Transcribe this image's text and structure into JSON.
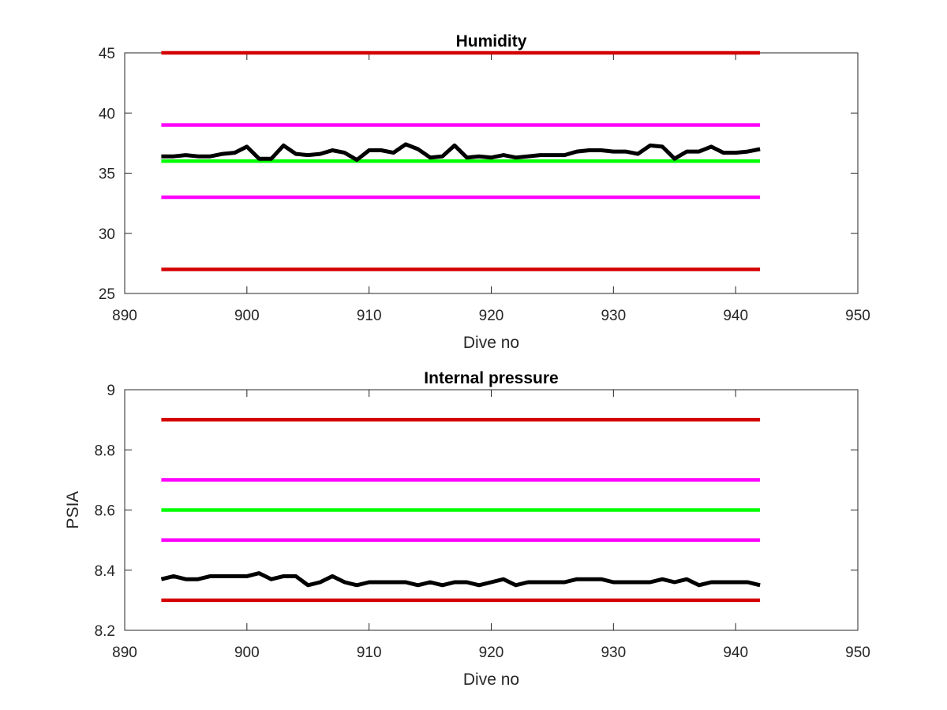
{
  "chart_data": [
    {
      "type": "line",
      "title": "Humidity",
      "xlabel": "Dive no",
      "ylabel": "",
      "xlim": [
        890,
        950
      ],
      "ylim": [
        25,
        45
      ],
      "xticks": [
        890,
        900,
        910,
        920,
        930,
        940,
        950
      ],
      "yticks": [
        25,
        30,
        35,
        40,
        45
      ],
      "grid": false,
      "legend": "none",
      "series": [
        {
          "color": "#d40000",
          "x": [
            893,
            942
          ],
          "y": [
            45,
            45
          ]
        },
        {
          "color": "#ff00ff",
          "x": [
            893,
            942
          ],
          "y": [
            39,
            39
          ]
        },
        {
          "color": "#00ff00",
          "x": [
            893,
            942
          ],
          "y": [
            36,
            36
          ]
        },
        {
          "color": "#ff00ff",
          "x": [
            893,
            942
          ],
          "y": [
            33,
            33
          ]
        },
        {
          "color": "#d40000",
          "x": [
            893,
            942
          ],
          "y": [
            27,
            27
          ]
        },
        {
          "color": "#000000",
          "x": [
            893,
            894,
            895,
            896,
            897,
            898,
            899,
            900,
            901,
            902,
            903,
            904,
            905,
            906,
            907,
            908,
            909,
            910,
            911,
            912,
            913,
            914,
            915,
            916,
            917,
            918,
            919,
            920,
            921,
            922,
            923,
            924,
            925,
            926,
            927,
            928,
            929,
            930,
            931,
            932,
            933,
            934,
            935,
            936,
            937,
            938,
            939,
            940,
            941,
            942
          ],
          "y": [
            36.4,
            36.4,
            36.5,
            36.4,
            36.4,
            36.6,
            36.7,
            37.2,
            36.2,
            36.2,
            37.3,
            36.6,
            36.5,
            36.6,
            36.9,
            36.7,
            36.1,
            36.9,
            36.9,
            36.7,
            37.4,
            37.0,
            36.3,
            36.4,
            37.3,
            36.3,
            36.4,
            36.3,
            36.5,
            36.3,
            36.4,
            36.5,
            36.5,
            36.5,
            36.8,
            36.9,
            36.9,
            36.8,
            36.8,
            36.6,
            37.3,
            37.2,
            36.2,
            36.8,
            36.8,
            37.2,
            36.7,
            36.7,
            36.8,
            37.0
          ]
        }
      ]
    },
    {
      "type": "line",
      "title": "Internal pressure",
      "xlabel": "Dive no",
      "ylabel": "PSIA",
      "xlim": [
        890,
        950
      ],
      "ylim": [
        8.2,
        9
      ],
      "xticks": [
        890,
        900,
        910,
        920,
        930,
        940,
        950
      ],
      "yticks": [
        8.2,
        8.4,
        8.6,
        8.8,
        9
      ],
      "grid": false,
      "legend": "none",
      "series": [
        {
          "color": "#d40000",
          "x": [
            893,
            942
          ],
          "y": [
            8.9,
            8.9
          ]
        },
        {
          "color": "#ff00ff",
          "x": [
            893,
            942
          ],
          "y": [
            8.7,
            8.7
          ]
        },
        {
          "color": "#00ff00",
          "x": [
            893,
            942
          ],
          "y": [
            8.6,
            8.6
          ]
        },
        {
          "color": "#ff00ff",
          "x": [
            893,
            942
          ],
          "y": [
            8.5,
            8.5
          ]
        },
        {
          "color": "#d40000",
          "x": [
            893,
            942
          ],
          "y": [
            8.3,
            8.3
          ]
        },
        {
          "color": "#000000",
          "x": [
            893,
            894,
            895,
            896,
            897,
            898,
            899,
            900,
            901,
            902,
            903,
            904,
            905,
            906,
            907,
            908,
            909,
            910,
            911,
            912,
            913,
            914,
            915,
            916,
            917,
            918,
            919,
            920,
            921,
            922,
            923,
            924,
            925,
            926,
            927,
            928,
            929,
            930,
            931,
            932,
            933,
            934,
            935,
            936,
            937,
            938,
            939,
            940,
            941,
            942
          ],
          "y": [
            8.37,
            8.38,
            8.37,
            8.37,
            8.38,
            8.38,
            8.38,
            8.38,
            8.39,
            8.37,
            8.38,
            8.38,
            8.35,
            8.36,
            8.38,
            8.36,
            8.35,
            8.36,
            8.36,
            8.36,
            8.36,
            8.35,
            8.36,
            8.35,
            8.36,
            8.36,
            8.35,
            8.36,
            8.37,
            8.35,
            8.36,
            8.36,
            8.36,
            8.36,
            8.37,
            8.37,
            8.37,
            8.36,
            8.36,
            8.36,
            8.36,
            8.37,
            8.36,
            8.37,
            8.35,
            8.36,
            8.36,
            8.36,
            8.36,
            8.35
          ]
        }
      ]
    }
  ]
}
